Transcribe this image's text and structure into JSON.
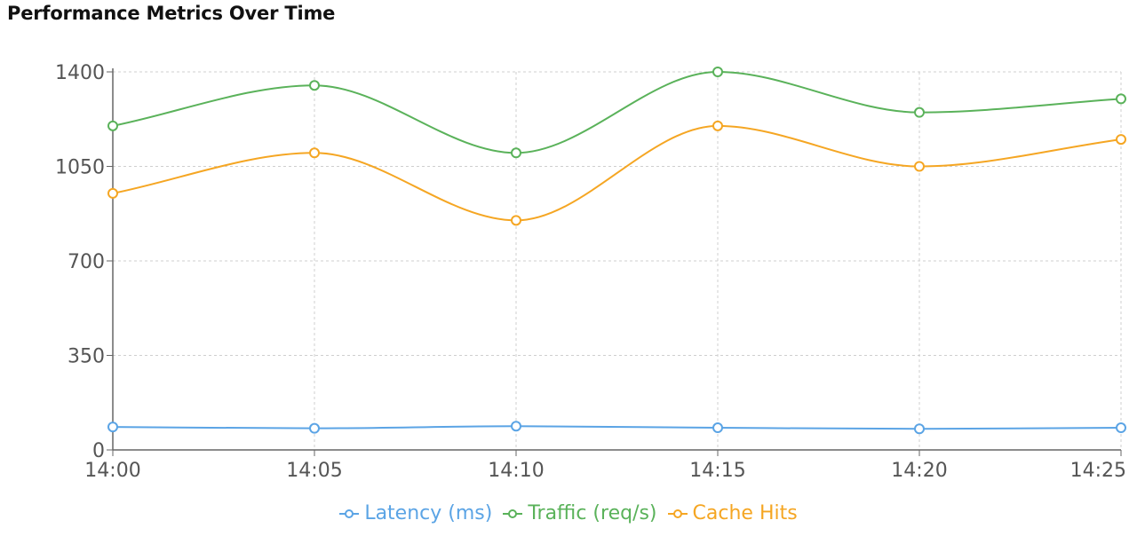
{
  "chart_data": {
    "type": "line",
    "title": "Performance Metrics Over Time",
    "xlabel": "",
    "ylabel": "",
    "categories": [
      "14:00",
      "14:05",
      "14:10",
      "14:15",
      "14:20",
      "14:25"
    ],
    "ylim": [
      0,
      1400
    ],
    "yticks": [
      0,
      350,
      700,
      1050,
      1400
    ],
    "grid": true,
    "legend_position": "bottom",
    "series": [
      {
        "name": "Latency (ms)",
        "color": "#5ba4e5",
        "values": [
          85,
          80,
          88,
          82,
          78,
          82
        ]
      },
      {
        "name": "Traffic (req/s)",
        "color": "#5ab25a",
        "values": [
          1200,
          1350,
          1100,
          1400,
          1250,
          1300
        ]
      },
      {
        "name": "Cache Hits",
        "color": "#f5a623",
        "values": [
          950,
          1100,
          850,
          1200,
          1050,
          1150
        ]
      }
    ]
  }
}
